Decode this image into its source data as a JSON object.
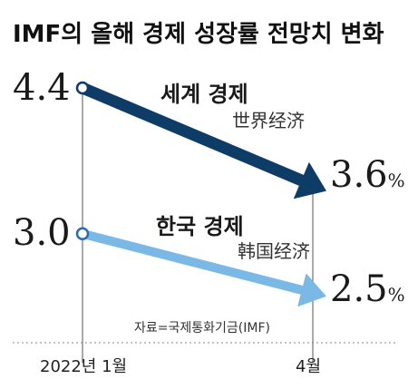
{
  "chart_data": {
    "type": "line",
    "title": "IMF의 올해 경제 성장률 전망치 변화",
    "categories": [
      "2022년 1월",
      "4월"
    ],
    "series": [
      {
        "name": "세계 경제",
        "subname": "世界经济",
        "values": [
          4.4,
          3.6
        ],
        "start_label": "4.4",
        "end_label": "3.6",
        "color": "#0d3c66"
      },
      {
        "name": "한국 경제",
        "subname": "韩国经济",
        "values": [
          3.0,
          2.5
        ],
        "start_label": "3.0",
        "end_label": "2.5",
        "color": "#7ab8e6"
      }
    ],
    "unit": "%",
    "source": "자료=국제통화기금(IMF)",
    "grid": false
  }
}
